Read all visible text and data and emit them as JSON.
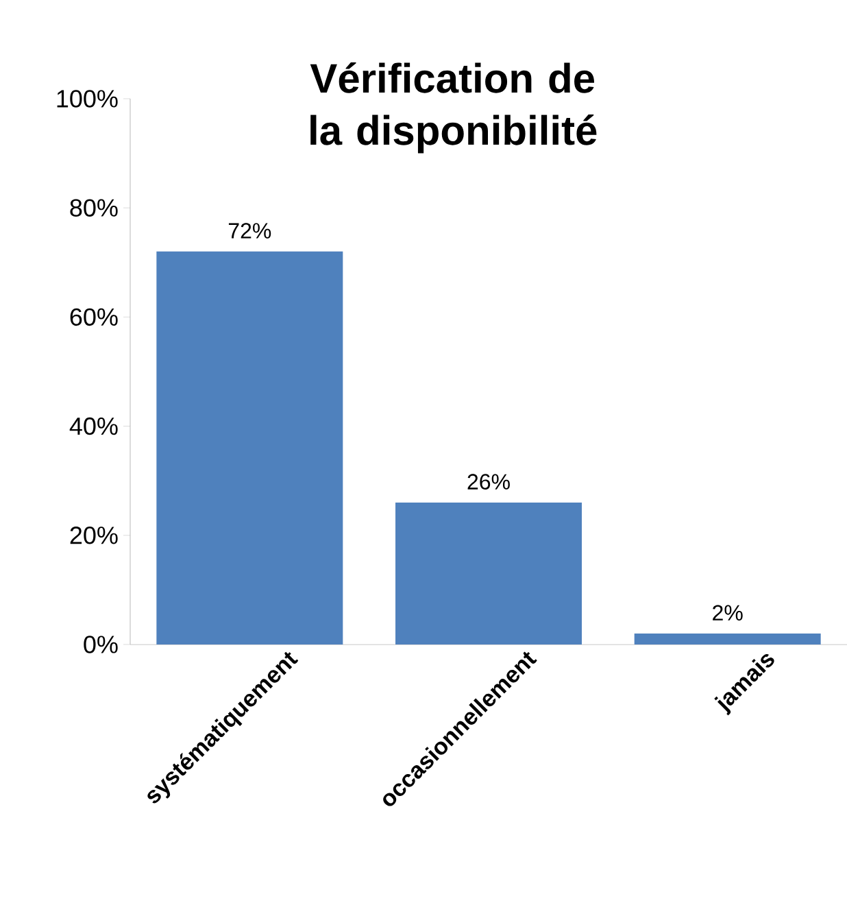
{
  "chart_data": {
    "type": "bar",
    "title": "Vérification de la disponibilité",
    "categories": [
      "systématiquement",
      "occasionnellement",
      "jamais"
    ],
    "values": [
      72,
      26,
      2
    ],
    "color": "#4f81bd",
    "value_labels": [
      "72%",
      "26%",
      "2%"
    ],
    "ylim": [
      0,
      100
    ],
    "yticks": [
      {
        "value": 0,
        "label": "0%"
      },
      {
        "value": 20,
        "label": "20%"
      },
      {
        "value": 40,
        "label": "40%"
      },
      {
        "value": 60,
        "label": "60%"
      },
      {
        "value": 80,
        "label": "80%"
      },
      {
        "value": 100,
        "label": "100%"
      }
    ],
    "grid": false
  }
}
